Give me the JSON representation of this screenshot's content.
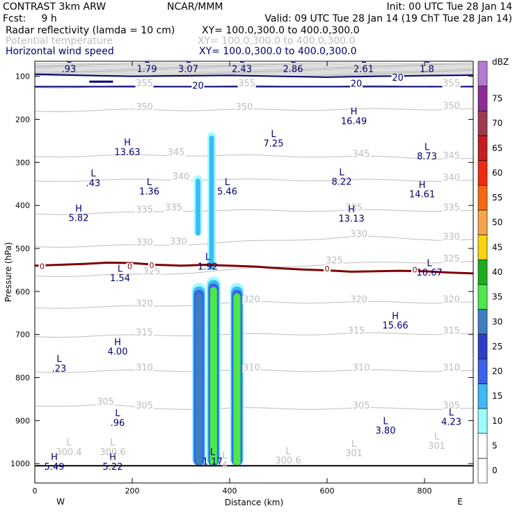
{
  "header": {
    "left1": "CONTRAST  3km ARW",
    "left2": "Fcst:     9 h",
    "center1": "NCAR/MMM",
    "right1": "Init: 00 UTC Tue 28 Jan 14",
    "valid": "Valid: 09 UTC Tue 28 Jan 14 (19 ChT Tue 28 Jan 14)",
    "fields": [
      {
        "name": "Radar reflectivity (lamda = 10 cm)",
        "xy": "XY= 100.0,300.0 to 400.0,300.0",
        "color": "#000000"
      },
      {
        "name": "Potential temperature",
        "xy": "XY= 100.0,300.0 to 400.0,300.0",
        "color": "#bdbdbd"
      },
      {
        "name": "Horizontal wind speed",
        "xy": "XY= 100.0,300.0 to 400.0,300.0",
        "color": "#000070"
      }
    ]
  },
  "chart_data": {
    "type": "cross-section",
    "xlabel": "Distance (km)",
    "ylabel": "Pressure (hPa)",
    "xlim": [
      0,
      900
    ],
    "ylim": [
      1045,
      65
    ],
    "x_ticks": [
      "0",
      "200",
      "400",
      "600",
      "800"
    ],
    "x_tick_values": [
      0,
      200,
      400,
      600,
      800
    ],
    "y_ticks": [
      "100",
      "200",
      "300",
      "400",
      "500",
      "600",
      "700",
      "800",
      "900",
      "1000"
    ],
    "y_tick_values": [
      100,
      200,
      300,
      400,
      500,
      600,
      700,
      800,
      900,
      1000
    ],
    "direction_labels": {
      "west": "W",
      "east": "E"
    },
    "colorbar": {
      "unit": "dBZ",
      "levels": [
        "0",
        "5",
        "10",
        "15",
        "20",
        "25",
        "30",
        "35",
        "40",
        "45",
        "50",
        "55",
        "60",
        "65",
        "70",
        "75"
      ],
      "colors": [
        "#ffffff",
        "#ffffff",
        "#9efcfc",
        "#3fb9f5",
        "#3b62e8",
        "#2e3fc6",
        "#3e7fbf",
        "#4ce84c",
        "#1ead1e",
        "#f7d40b",
        "#f7a54c",
        "#f46a12",
        "#ef2b10",
        "#c41e1e",
        "#9e3a4d",
        "#8c2d99",
        "#b57ad1"
      ]
    },
    "wind_speed_contours": [
      {
        "label": "20",
        "color": "#000070",
        "pressure": [
          95,
          98,
          100,
          99,
          98,
          100,
          102,
          100,
          97
        ],
        "x": [
          0,
          100,
          200,
          300,
          400,
          500,
          600,
          700,
          900
        ]
      },
      {
        "label": "20",
        "color": "#000070",
        "pressure": [
          124,
          124,
          124,
          124,
          124,
          124,
          124,
          124,
          124
        ],
        "x": [
          0,
          100,
          200,
          300,
          400,
          500,
          600,
          700,
          900
        ]
      }
    ],
    "zero_isotherm": {
      "label": "0",
      "color": "#800000",
      "x": [
        0,
        50,
        100,
        150,
        200,
        250,
        300,
        350,
        400,
        450,
        500,
        550,
        600,
        650,
        700,
        750,
        800,
        850,
        900
      ],
      "pressure": [
        540,
        538,
        536,
        533,
        534,
        538,
        540,
        538,
        540,
        542,
        546,
        549,
        551,
        554,
        553,
        552,
        553,
        556,
        558
      ]
    },
    "theta_labels": [
      {
        "text": "355",
        "x": 225,
        "p": 123
      },
      {
        "text": "355",
        "x": 435,
        "p": 123
      },
      {
        "text": "355",
        "x": 855,
        "p": 123
      },
      {
        "text": "350",
        "x": 225,
        "p": 178
      },
      {
        "text": "350",
        "x": 430,
        "p": 178
      },
      {
        "text": "350",
        "x": 855,
        "p": 176
      },
      {
        "text": "345",
        "x": 290,
        "p": 283
      },
      {
        "text": "345",
        "x": 670,
        "p": 287
      },
      {
        "text": "345",
        "x": 855,
        "p": 291
      },
      {
        "text": "340",
        "x": 300,
        "p": 340
      },
      {
        "text": "340",
        "x": 855,
        "p": 342
      },
      {
        "text": "335",
        "x": 225,
        "p": 417
      },
      {
        "text": "335",
        "x": 285,
        "p": 412
      },
      {
        "text": "335",
        "x": 655,
        "p": 412
      },
      {
        "text": "335",
        "x": 855,
        "p": 412
      },
      {
        "text": "330",
        "x": 225,
        "p": 493
      },
      {
        "text": "330",
        "x": 295,
        "p": 491
      },
      {
        "text": "330",
        "x": 665,
        "p": 473
      },
      {
        "text": "330",
        "x": 855,
        "p": 480
      },
      {
        "text": "325",
        "x": 240,
        "p": 561
      },
      {
        "text": "325",
        "x": 615,
        "p": 535
      },
      {
        "text": "325",
        "x": 855,
        "p": 531
      },
      {
        "text": "320",
        "x": 225,
        "p": 635
      },
      {
        "text": "320",
        "x": 445,
        "p": 625
      },
      {
        "text": "320",
        "x": 665,
        "p": 625
      },
      {
        "text": "320",
        "x": 855,
        "p": 625
      },
      {
        "text": "315",
        "x": 225,
        "p": 702
      },
      {
        "text": "315",
        "x": 660,
        "p": 698
      },
      {
        "text": "315",
        "x": 855,
        "p": 698
      },
      {
        "text": "310",
        "x": 225,
        "p": 784
      },
      {
        "text": "310",
        "x": 445,
        "p": 784
      },
      {
        "text": "310",
        "x": 670,
        "p": 784
      },
      {
        "text": "310",
        "x": 855,
        "p": 784
      },
      {
        "text": "305",
        "x": 145,
        "p": 863
      },
      {
        "text": "305",
        "x": 225,
        "p": 872
      },
      {
        "text": "305",
        "x": 670,
        "p": 872
      },
      {
        "text": "305",
        "x": 855,
        "p": 872
      }
    ],
    "extrema": [
      {
        "letter": "L",
        "value": ".93",
        "x": 70,
        "p": 90
      },
      {
        "letter": "L",
        "value": "1.79",
        "x": 230,
        "p": 90
      },
      {
        "letter": "L",
        "value": "3.07",
        "x": 315,
        "p": 90
      },
      {
        "letter": "L",
        "value": "2.43",
        "x": 425,
        "p": 90
      },
      {
        "letter": "L",
        "value": "2.86",
        "x": 530,
        "p": 90
      },
      {
        "letter": "L",
        "value": "2.61",
        "x": 675,
        "p": 90
      },
      {
        "letter": "L",
        "value": "1.8",
        "x": 805,
        "p": 90
      },
      {
        "letter": "H",
        "value": "13.63",
        "x": 190,
        "p": 283
      },
      {
        "letter": "L",
        "value": ".43",
        "x": 120,
        "p": 355
      },
      {
        "letter": "L",
        "value": "1.36",
        "x": 235,
        "p": 375
      },
      {
        "letter": "L",
        "value": "5.46",
        "x": 395,
        "p": 375
      },
      {
        "letter": "L",
        "value": "7.25",
        "x": 490,
        "p": 263
      },
      {
        "letter": "H",
        "value": "16.49",
        "x": 655,
        "p": 211
      },
      {
        "letter": "L",
        "value": "8.73",
        "x": 805,
        "p": 293
      },
      {
        "letter": "L",
        "value": "8.22",
        "x": 630,
        "p": 352
      },
      {
        "letter": "H",
        "value": "14.61",
        "x": 795,
        "p": 381
      },
      {
        "letter": "H",
        "value": "5.82",
        "x": 90,
        "p": 436
      },
      {
        "letter": "H",
        "value": "13.13",
        "x": 650,
        "p": 438
      },
      {
        "letter": "L",
        "value": "1.92",
        "x": 355,
        "p": 549
      },
      {
        "letter": "L",
        "value": "10.67",
        "x": 810,
        "p": 563
      },
      {
        "letter": "L",
        "value": "1.54",
        "x": 175,
        "p": 576
      },
      {
        "letter": "H",
        "value": "15.66",
        "x": 740,
        "p": 686
      },
      {
        "letter": "H",
        "value": "4.00",
        "x": 170,
        "p": 747
      },
      {
        "letter": "L",
        "value": ".23",
        "x": 50,
        "p": 786
      },
      {
        "letter": "L",
        "value": ".96",
        "x": 170,
        "p": 912
      },
      {
        "letter": "L",
        "value": "3.80",
        "x": 720,
        "p": 930
      },
      {
        "letter": "L",
        "value": "4.23",
        "x": 855,
        "p": 910
      },
      {
        "letter": "H",
        "value": "5.49",
        "x": 40,
        "p": 1014
      },
      {
        "letter": "H",
        "value": "5.22",
        "x": 160,
        "p": 1014
      },
      {
        "letter": "L",
        "value": "1.17",
        "x": 365,
        "p": 1002
      }
    ],
    "theta_extrema": [
      {
        "letter": "L",
        "value": "300.4",
        "x": 70,
        "p": 980
      },
      {
        "letter": "L",
        "value": "300.6",
        "x": 160,
        "p": 980
      },
      {
        "letter": "L",
        "value": "301",
        "x": 655,
        "p": 983
      },
      {
        "letter": "L",
        "value": "301",
        "x": 825,
        "p": 966
      },
      {
        "letter": "L",
        "value": "300.6",
        "x": 520,
        "p": 1000
      },
      {
        "letter": "L",
        "value": "4",
        "x": 390,
        "p": 1010
      }
    ],
    "zero_labels": [
      {
        "text": "0",
        "x": 15,
        "p": 548
      },
      {
        "text": "0",
        "x": 195,
        "p": 548
      },
      {
        "text": "0",
        "x": 240,
        "p": 545
      },
      {
        "text": "0",
        "x": 600,
        "p": 553
      },
      {
        "text": "0",
        "x": 780,
        "p": 556
      }
    ],
    "wind_labels": [
      {
        "text": "20",
        "x": 335,
        "p": 129
      },
      {
        "text": "20",
        "x": 660,
        "p": 124
      },
      {
        "text": "20",
        "x": 745,
        "p": 110
      }
    ],
    "reflectivity_cells": [
      {
        "name": "tower-1",
        "x": 337,
        "p_top": 580,
        "p_bottom": 1005,
        "peak_dbz": 25
      },
      {
        "name": "tower-2",
        "x": 367,
        "p_top": 565,
        "p_bottom": 1005,
        "peak_dbz": 35
      },
      {
        "name": "tower-3",
        "x": 415,
        "p_top": 580,
        "p_bottom": 1005,
        "peak_dbz": 35
      },
      {
        "name": "anvil-left",
        "x": 335,
        "p_top": 330,
        "p_bottom": 470,
        "peak_dbz": 20
      },
      {
        "name": "anvil-center",
        "x": 363,
        "p_top": 230,
        "p_bottom": 550,
        "peak_dbz": 20
      }
    ]
  }
}
